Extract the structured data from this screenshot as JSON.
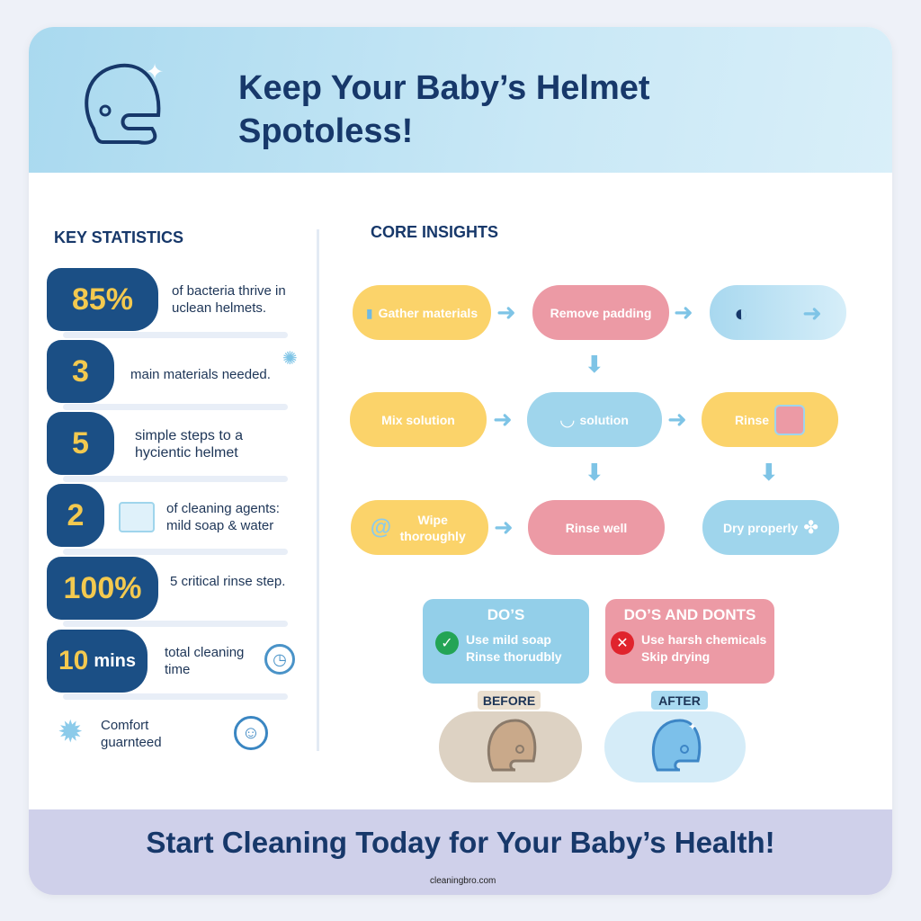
{
  "header": {
    "title": "Keep Your Baby’s Helmet Spotoless!",
    "icon": "helmet-sparkle-icon"
  },
  "key_statistics": {
    "heading": "KEY STATISTICS",
    "items": [
      {
        "value": "85%",
        "text": "of bacteria thrive in uclean helmets."
      },
      {
        "value": "3",
        "text": "main materials needed.",
        "icon": "germ-icon"
      },
      {
        "value": "5",
        "text": "simple steps to a hycientic helmet"
      },
      {
        "value": "2",
        "text": "of cleaning agents: mild soap & water",
        "icon": "soap-water-icon"
      },
      {
        "value": "100%",
        "text": "5 critical rinse step."
      },
      {
        "value": "10",
        "unit": "mins",
        "text": "total cleaning time",
        "icon": "clock-icon"
      }
    ],
    "footer_text": "Comfort guarnteed"
  },
  "core_insights": {
    "heading": "CORE INSIGHTS",
    "steps": [
      "Gather materials",
      "Remove padding",
      "",
      "Mix solution",
      "solution",
      "Rinse",
      "Wipe thoroughly",
      "Rinse well",
      "Dry properly"
    ]
  },
  "dos": {
    "title": "DO’S",
    "items": [
      "Use mild soap",
      "Rinse thorudbly"
    ]
  },
  "donts": {
    "title": "DO’S AND DONTS",
    "items": [
      "Use harsh chemicals",
      "Skip drying"
    ]
  },
  "before_label": "BEFORE",
  "after_label": "AFTER",
  "footer": {
    "text": "Start Cleaning Today for Your Baby’s Health!",
    "watermark": "cleaningbro.com"
  },
  "colors": {
    "navy": "#17386a",
    "badge": "#1b4f85",
    "gold": "#f3c94f",
    "yellow": "#fbd36a",
    "pink": "#ec9aa5",
    "blue": "#9fd5ec",
    "footer": "#cfd0ea"
  }
}
